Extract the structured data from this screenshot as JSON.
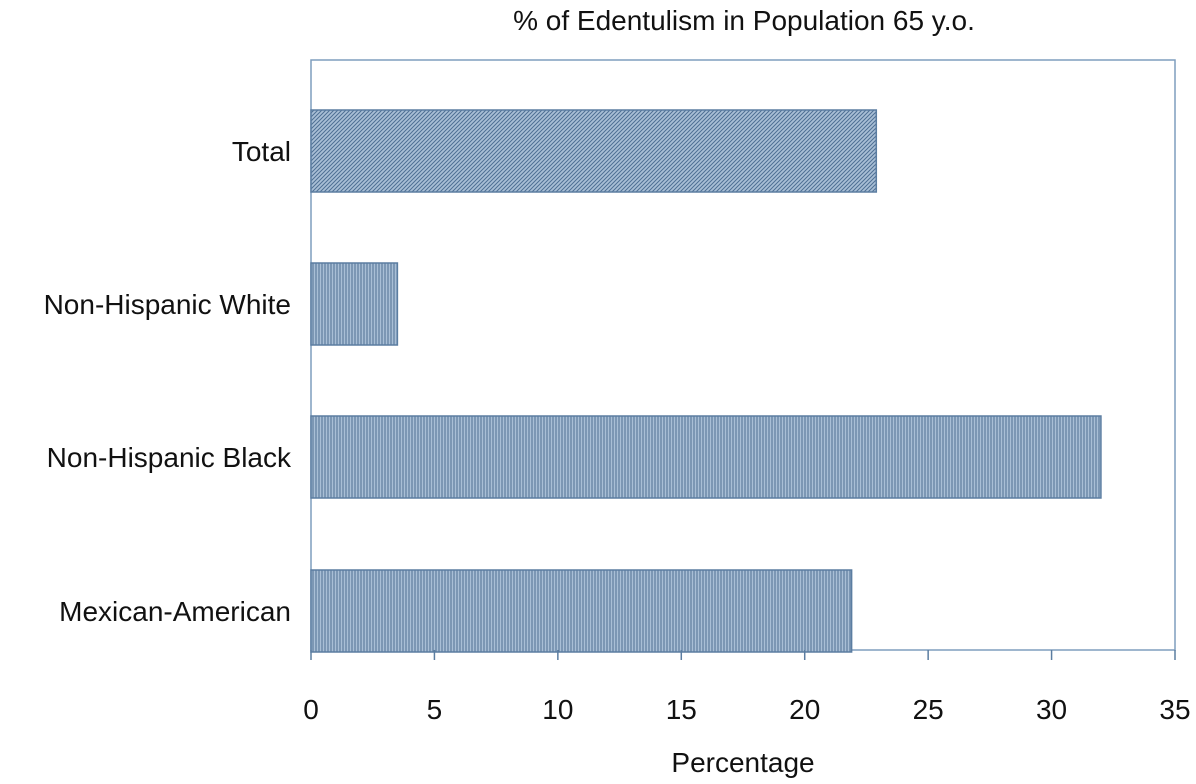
{
  "chart_data": {
    "type": "bar",
    "orientation": "horizontal",
    "title": "% of Edentulism in Population 65 y.o.",
    "xlabel": "Percentage",
    "ylabel": "",
    "categories": [
      "Total",
      "Non-Hispanic White",
      "Non-Hispanic Black",
      "Mexican-American"
    ],
    "values": [
      22.9,
      3.5,
      32.0,
      21.9
    ],
    "xlim": [
      0,
      35
    ],
    "xticks": [
      0,
      5,
      10,
      15,
      20,
      25,
      30,
      35
    ],
    "grid": false,
    "legend": "none",
    "bar_fill": "#a9bfd6",
    "bar_stripe": "#4e6f93",
    "bar_stroke": "#5b7da1",
    "frame_color": "#7f9dbd",
    "axis_color": "#5b7da1",
    "bar_patterns": [
      "diagonal",
      "vertical",
      "vertical",
      "vertical"
    ]
  }
}
